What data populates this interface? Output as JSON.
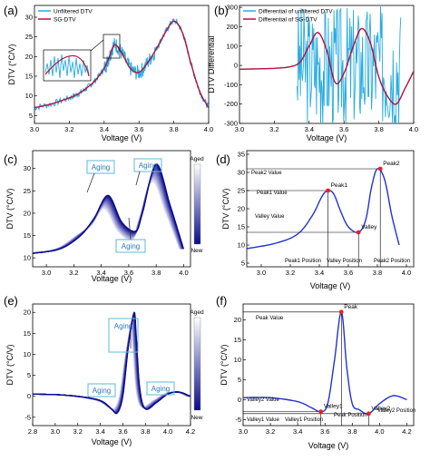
{
  "panels": [
    {
      "id": "a",
      "label": "(a)",
      "xlabel": "Voltage (V)",
      "ylabel": "DTV (°C/V)",
      "xticks": [
        "3.0",
        "3.2",
        "3.4",
        "3.6",
        "3.8",
        "4.0"
      ],
      "yticks": [
        "5",
        "10",
        "15",
        "20",
        "25",
        "30"
      ],
      "legend": [
        "Unfiltered DTV",
        "SG-DTV"
      ]
    },
    {
      "id": "b",
      "label": "(b)",
      "xlabel": "Voltage (V)",
      "ylabel": "DTV Differential",
      "xticks": [
        "3.0",
        "3.2",
        "3.4",
        "3.6",
        "3.8",
        "4.0"
      ],
      "yticks": [
        "-300",
        "-200",
        "-100",
        "0",
        "100",
        "200",
        "300"
      ],
      "legend": [
        "Differential of unfiltered DTV",
        "Differential of SG-DTV"
      ]
    },
    {
      "id": "c",
      "label": "(c)",
      "xlabel": "Voltage (V)",
      "ylabel": "DTV (°C/V)",
      "xticks": [
        "3.0",
        "3.2",
        "3.4",
        "3.6",
        "3.8",
        "4.0"
      ],
      "yticks": [
        "10",
        "15",
        "20",
        "25",
        "30"
      ],
      "colorbar": [
        "Aged",
        "New"
      ],
      "annotations": [
        "Aging",
        "Aging",
        "Aging"
      ]
    },
    {
      "id": "d",
      "label": "(d)",
      "xlabel": "Voltage (V)",
      "ylabel": "DTV (°C/V)",
      "xticks": [
        "3.0",
        "3.2",
        "3.4",
        "3.6",
        "3.8",
        "4.0"
      ],
      "yticks": [
        "5",
        "10",
        "15",
        "20",
        "25",
        "30",
        "35"
      ],
      "points": [
        "Peak1",
        "Peak2",
        "Valley"
      ],
      "annotations": [
        "Peak2 Value",
        "Peak1 Value",
        "Valley Value",
        "Peak1 Position",
        "Valley Position",
        "Peak2 Position"
      ]
    },
    {
      "id": "e",
      "label": "(e)",
      "xlabel": "Voltage (V)",
      "ylabel": "DTV (°C/V)",
      "xticks": [
        "2.8",
        "3.0",
        "3.2",
        "3.4",
        "3.6",
        "3.8",
        "4.0",
        "4.2"
      ],
      "yticks": [
        "-5",
        "0",
        "5",
        "10",
        "15",
        "20"
      ],
      "colorbar": [
        "Aged",
        "New"
      ],
      "annotations": [
        "Aging",
        "Aging",
        "Aging"
      ]
    },
    {
      "id": "f",
      "label": "(f)",
      "xlabel": "Voltage (V)",
      "ylabel": "DTV (°C/V)",
      "xticks": [
        "3.0",
        "3.2",
        "3.4",
        "3.6",
        "3.8",
        "4.0",
        "4.2"
      ],
      "yticks": [
        "-5",
        "0",
        "5",
        "10",
        "15",
        "20"
      ],
      "points": [
        "Peak",
        "Valley1",
        "Valley2"
      ],
      "annotations": [
        "Peak Value",
        "Valley2 Value",
        "Valley1 Value",
        "Valley1 Position",
        "Peak Position",
        "Valley2 Position"
      ]
    }
  ],
  "chart_data": [
    {
      "type": "line",
      "panel": "a",
      "xlim": [
        3.0,
        4.0
      ],
      "ylim": [
        3,
        33
      ],
      "series": [
        {
          "name": "Unfiltered DTV",
          "color": "#29abe2",
          "x": [
            3.0,
            3.1,
            3.2,
            3.25,
            3.3,
            3.35,
            3.4,
            3.43,
            3.46,
            3.5,
            3.55,
            3.6,
            3.65,
            3.7,
            3.75,
            3.8,
            3.85,
            3.9,
            3.95,
            4.0
          ],
          "y": [
            7,
            8,
            9.5,
            10.5,
            12,
            14,
            17,
            20,
            23,
            21,
            17,
            16,
            18.5,
            22,
            26,
            29,
            26,
            18,
            11,
            7
          ]
        },
        {
          "name": "SG-DTV",
          "color": "#b5123c",
          "x": [
            3.0,
            3.1,
            3.2,
            3.25,
            3.3,
            3.35,
            3.4,
            3.43,
            3.46,
            3.5,
            3.55,
            3.6,
            3.65,
            3.7,
            3.75,
            3.8,
            3.85,
            3.9,
            3.95,
            4.0
          ],
          "y": [
            7,
            8,
            9.5,
            10.5,
            12,
            14,
            17,
            20,
            23,
            21,
            17,
            16,
            18.5,
            22,
            26,
            29,
            26,
            18,
            11,
            7
          ]
        }
      ]
    },
    {
      "type": "line",
      "panel": "b",
      "xlim": [
        3.0,
        4.0
      ],
      "ylim": [
        -300,
        310
      ],
      "series": [
        {
          "name": "Differential of unfiltered DTV",
          "color": "#29abe2",
          "x": [
            3.0,
            3.2,
            3.3,
            3.35,
            3.4,
            3.45,
            3.5,
            3.55,
            3.6,
            3.65,
            3.7,
            3.75,
            3.8,
            3.85,
            3.9,
            3.95,
            4.0
          ],
          "y": [
            -20,
            -15,
            -5,
            20,
            100,
            170,
            80,
            -90,
            -40,
            90,
            190,
            120,
            -60,
            -160,
            -200,
            -120,
            -30
          ]
        },
        {
          "name": "Differential of SG-DTV",
          "color": "#b5123c",
          "x": [
            3.0,
            3.2,
            3.3,
            3.35,
            3.4,
            3.45,
            3.5,
            3.55,
            3.6,
            3.65,
            3.7,
            3.75,
            3.8,
            3.85,
            3.9,
            3.95,
            4.0
          ],
          "y": [
            -20,
            -15,
            -5,
            20,
            100,
            170,
            80,
            -90,
            -40,
            90,
            190,
            120,
            -60,
            -160,
            -200,
            -120,
            -30
          ]
        }
      ]
    },
    {
      "type": "line",
      "panel": "c",
      "xlim": [
        2.9,
        4.05
      ],
      "ylim": [
        8,
        34
      ],
      "series": [
        {
          "x": [
            2.9,
            3.1,
            3.25,
            3.35,
            3.45,
            3.55,
            3.65,
            3.7,
            3.8,
            3.9,
            4.0
          ],
          "y": [
            11,
            12,
            15,
            19,
            24,
            18,
            16,
            20,
            31,
            22,
            12
          ]
        },
        {
          "x": [
            2.9,
            3.1,
            3.25,
            3.35,
            3.45,
            3.55,
            3.65,
            3.7,
            3.8,
            3.9,
            4.0
          ],
          "y": [
            11,
            12,
            15,
            18,
            22,
            17,
            15,
            19,
            29,
            21,
            12
          ]
        },
        {
          "x": [
            2.9,
            3.1,
            3.25,
            3.35,
            3.45,
            3.55,
            3.65,
            3.7,
            3.8,
            3.9,
            4.0
          ],
          "y": [
            11,
            12,
            15,
            17,
            21,
            16,
            14,
            18,
            27,
            20,
            12
          ]
        }
      ]
    },
    {
      "type": "line",
      "panel": "d",
      "xlim": [
        2.9,
        4.05
      ],
      "ylim": [
        4,
        36
      ],
      "series": [
        {
          "color": "#2233cc",
          "x": [
            2.9,
            3.1,
            3.25,
            3.35,
            3.42,
            3.46,
            3.5,
            3.55,
            3.6,
            3.67,
            3.72,
            3.76,
            3.8,
            3.85,
            3.9,
            3.95
          ],
          "y": [
            9,
            10.5,
            13,
            18,
            23.5,
            25,
            24,
            19,
            15,
            13.5,
            17,
            26,
            31,
            28,
            18,
            10
          ]
        }
      ],
      "points": [
        {
          "label": "Peak1",
          "x": 3.46,
          "y": 25
        },
        {
          "label": "Valley",
          "x": 3.67,
          "y": 13.5
        },
        {
          "label": "Peak2",
          "x": 3.82,
          "y": 31
        }
      ]
    },
    {
      "type": "line",
      "panel": "e",
      "xlim": [
        2.8,
        4.2
      ],
      "ylim": [
        -7,
        22
      ],
      "series": [
        {
          "x": [
            2.8,
            3.0,
            3.2,
            3.4,
            3.5,
            3.55,
            3.6,
            3.65,
            3.7,
            3.72,
            3.75,
            3.8,
            3.9,
            4.0,
            4.1,
            4.2
          ],
          "y": [
            0.5,
            0.4,
            0,
            -1,
            -3,
            -4,
            0,
            12,
            20,
            14,
            2,
            -3,
            -1.5,
            0.5,
            1,
            0
          ]
        },
        {
          "x": [
            2.8,
            3.0,
            3.2,
            3.4,
            3.5,
            3.55,
            3.6,
            3.65,
            3.7,
            3.72,
            3.75,
            3.8,
            3.9,
            4.0,
            4.1,
            4.2
          ],
          "y": [
            0.5,
            0.4,
            0,
            -1,
            -2.5,
            -3,
            0,
            9,
            16,
            11,
            1,
            -2.5,
            -1,
            0.5,
            1,
            0
          ]
        }
      ]
    },
    {
      "type": "line",
      "panel": "f",
      "xlim": [
        3.0,
        4.25
      ],
      "ylim": [
        -6.5,
        24
      ],
      "series": [
        {
          "color": "#2233cc",
          "x": [
            3.0,
            3.2,
            3.4,
            3.5,
            3.57,
            3.62,
            3.67,
            3.72,
            3.76,
            3.8,
            3.85,
            3.92,
            4.0,
            4.1,
            4.2
          ],
          "y": [
            0.5,
            0.5,
            -0.5,
            -2,
            -3,
            -1,
            10,
            22,
            8,
            -1,
            -2.5,
            -3.5,
            -1,
            1,
            0
          ]
        }
      ],
      "points": [
        {
          "label": "Peak",
          "x": 3.72,
          "y": 22
        },
        {
          "label": "Valley1",
          "x": 3.57,
          "y": -3
        },
        {
          "label": "Valley2",
          "x": 3.92,
          "y": -3.5
        }
      ]
    }
  ]
}
